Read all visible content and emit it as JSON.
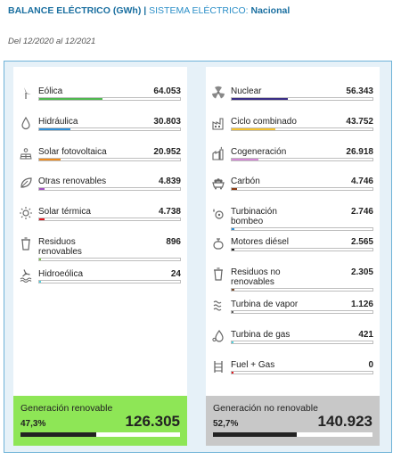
{
  "header": {
    "title": "BALANCE ELÉCTRICO (GWh)",
    "separator": "|",
    "system_label": "SISTEMA ELÉCTRICO:",
    "system_value": "Nacional"
  },
  "date_range": "Del 12/2020 al 12/2021",
  "renewable": {
    "items": [
      {
        "label": "Eólica",
        "value": "64.053",
        "fraction": 0.45,
        "color": "#4fb84f",
        "icon": "wind-turbine-icon"
      },
      {
        "label": "Hidráulica",
        "value": "30.803",
        "fraction": 0.22,
        "color": "#2f8fd6",
        "icon": "water-drop-icon"
      },
      {
        "label": "Solar fotovoltaica",
        "value": "20.952",
        "fraction": 0.15,
        "color": "#ef8b1c",
        "icon": "solar-panel-icon"
      },
      {
        "label": "Otras renovables",
        "value": "4.839",
        "fraction": 0.035,
        "color": "#a34fc2",
        "icon": "leaf-icon"
      },
      {
        "label": "Solar térmica",
        "value": "4.738",
        "fraction": 0.035,
        "color": "#e0151d",
        "icon": "sun-icon"
      },
      {
        "label": "Residuos\nrenovables",
        "value": "896",
        "fraction": 0.006,
        "color": "#7ac943",
        "icon": "bin-icon"
      },
      {
        "label": "Hidroeólica",
        "value": "24",
        "fraction": 0.002,
        "color": "#4ad3e0",
        "icon": "hydro-wind-icon"
      }
    ],
    "footer": {
      "title": "Generación renovable",
      "percent": "47,3%",
      "total": "126.305",
      "fraction": 0.473
    }
  },
  "nonrenewable": {
    "items": [
      {
        "label": "Nuclear",
        "value": "56.343",
        "fraction": 0.4,
        "color": "#3a2e86",
        "icon": "nuclear-icon"
      },
      {
        "label": "Ciclo combinado",
        "value": "43.752",
        "fraction": 0.31,
        "color": "#f2c12e",
        "icon": "factory-icon"
      },
      {
        "label": "Cogeneración",
        "value": "26.918",
        "fraction": 0.19,
        "color": "#d58ad6",
        "icon": "cogeneration-icon"
      },
      {
        "label": "Carbón",
        "value": "4.746",
        "fraction": 0.035,
        "color": "#8a3a12",
        "icon": "coal-cart-icon"
      },
      {
        "label": "Turbinación\nbombeo",
        "value": "2.746",
        "fraction": 0.02,
        "color": "#2f8fd6",
        "icon": "pump-icon"
      },
      {
        "label": "Motores diésel",
        "value": "2.565",
        "fraction": 0.018,
        "color": "#222222",
        "icon": "engine-icon"
      },
      {
        "label": "Residuos no\nrenovables",
        "value": "2.305",
        "fraction": 0.016,
        "color": "#7a4a2a",
        "icon": "bin-icon"
      },
      {
        "label": "Turbina de vapor",
        "value": "1.126",
        "fraction": 0.008,
        "color": "#5a5a5a",
        "icon": "steam-icon"
      },
      {
        "label": "Turbina de gas",
        "value": "421",
        "fraction": 0.003,
        "color": "#4ad3e0",
        "icon": "gas-icon"
      },
      {
        "label": "Fuel + Gas",
        "value": "0",
        "fraction": 0.0,
        "color": "#e0151d",
        "icon": "fuel-tower-icon"
      }
    ],
    "footer": {
      "title": "Generación no renovable",
      "percent": "52,7%",
      "total": "140.923",
      "fraction": 0.527
    }
  }
}
